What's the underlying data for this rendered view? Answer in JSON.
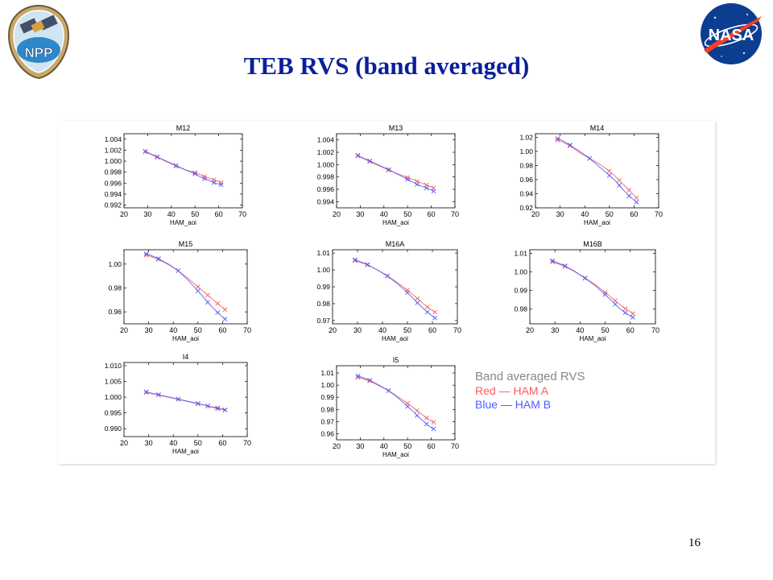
{
  "slide": {
    "title": "TEB RVS (band averaged)",
    "page_number": "16"
  },
  "logos": {
    "npp_text": "NPP",
    "nasa_text": "NASA"
  },
  "legend": {
    "title": "Band averaged RVS",
    "entries": [
      {
        "label": "Red  —  HAM A",
        "color": "#ff5a5a"
      },
      {
        "label": "Blue  —  HAM B",
        "color": "#4a5cff"
      }
    ]
  },
  "colors": {
    "ham_a": "#ff5a5a",
    "ham_b": "#4a5cff",
    "title": "#0b1f9a"
  },
  "chart_data": [
    {
      "type": "line",
      "title": "M12",
      "xlabel": "HAM_aoi",
      "ylabel": "",
      "xlim": [
        20,
        70
      ],
      "xticks": [
        20,
        30,
        40,
        50,
        60,
        70
      ],
      "ylim": [
        0.9915,
        1.005
      ],
      "yticks": [
        0.992,
        0.994,
        0.996,
        0.998,
        1.0,
        1.002,
        1.004
      ],
      "ytick_labels": [
        "0.992",
        "0.994",
        "0.996",
        "0.998",
        "1.000",
        "1.002",
        "1.004"
      ],
      "x": [
        29,
        30,
        34,
        38,
        42,
        46,
        50,
        52,
        54,
        56,
        58,
        60,
        61
      ],
      "series": [
        {
          "values": [
            1.0017,
            1.0015,
            1.0007,
            0.9999,
            0.9991,
            0.9984,
            0.9979,
            0.9976,
            0.9972,
            0.9969,
            0.9966,
            0.9963,
            0.9961
          ]
        },
        {
          "values": [
            1.0018,
            1.0016,
            1.0008,
            1.0,
            0.9992,
            0.9984,
            0.9977,
            0.9972,
            0.9968,
            0.9965,
            0.9961,
            0.9958,
            0.9957
          ]
        }
      ]
    },
    {
      "type": "line",
      "title": "M13",
      "xlabel": "HAM_aoi",
      "ylabel": "",
      "xlim": [
        20,
        70
      ],
      "xticks": [
        20,
        30,
        40,
        50,
        60,
        70
      ],
      "ylim": [
        0.993,
        1.005
      ],
      "yticks": [
        0.994,
        0.996,
        0.998,
        1.0,
        1.002,
        1.004
      ],
      "ytick_labels": [
        "0.994",
        "0.996",
        "0.998",
        "1.000",
        "1.002",
        "1.004"
      ],
      "x": [
        29,
        30,
        34,
        38,
        42,
        46,
        50,
        52,
        54,
        56,
        58,
        60,
        61
      ],
      "series": [
        {
          "values": [
            1.0014,
            1.0012,
            1.0005,
            0.9998,
            0.9991,
            0.9985,
            0.9979,
            0.9976,
            0.9973,
            0.997,
            0.9967,
            0.9964,
            0.9962
          ]
        },
        {
          "values": [
            1.0015,
            1.0013,
            1.0006,
            0.9999,
            0.9992,
            0.9984,
            0.9976,
            0.9972,
            0.9968,
            0.9965,
            0.9962,
            0.9959,
            0.9957
          ]
        }
      ]
    },
    {
      "type": "line",
      "title": "M14",
      "xlabel": "HAM_aoi",
      "ylabel": "",
      "xlim": [
        20,
        70
      ],
      "xticks": [
        20,
        30,
        40,
        50,
        60,
        70
      ],
      "ylim": [
        0.92,
        1.025
      ],
      "yticks": [
        0.92,
        0.94,
        0.96,
        0.98,
        1.0,
        1.02
      ],
      "ytick_labels": [
        "0.92",
        "0.94",
        "0.96",
        "0.98",
        "1.00",
        "1.02"
      ],
      "x": [
        29,
        30,
        34,
        38,
        42,
        46,
        50,
        52,
        54,
        56,
        58,
        60,
        61
      ],
      "series": [
        {
          "values": [
            1.016,
            1.015,
            1.008,
            0.998,
            0.99,
            0.982,
            0.972,
            0.966,
            0.959,
            0.952,
            0.945,
            0.938,
            0.934
          ]
        },
        {
          "values": [
            1.018,
            1.017,
            1.009,
            1.0,
            0.99,
            0.978,
            0.966,
            0.96,
            0.952,
            0.944,
            0.937,
            0.931,
            0.928
          ]
        }
      ]
    },
    {
      "type": "line",
      "title": "M15",
      "xlabel": "HAM_aoi",
      "ylabel": "",
      "xlim": [
        20,
        70
      ],
      "xticks": [
        20,
        30,
        40,
        50,
        60,
        70
      ],
      "ylim": [
        0.95,
        1.012
      ],
      "yticks": [
        0.96,
        0.98,
        1.0
      ],
      "ytick_labels": [
        "0.96",
        "0.98",
        "1.00"
      ],
      "x": [
        29,
        30,
        34,
        38,
        42,
        46,
        50,
        52,
        54,
        56,
        58,
        60,
        61
      ],
      "series": [
        {
          "values": [
            1.0075,
            1.007,
            1.004,
            0.9995,
            0.9945,
            0.988,
            0.981,
            0.9775,
            0.974,
            0.9705,
            0.967,
            0.9635,
            0.962
          ]
        },
        {
          "values": [
            1.0085,
            1.008,
            1.0045,
            1.0,
            0.9945,
            0.9865,
            0.9775,
            0.973,
            0.968,
            0.9635,
            0.9595,
            0.9555,
            0.954
          ]
        }
      ]
    },
    {
      "type": "line",
      "title": "M16A",
      "xlabel": "HAM_aoi",
      "ylabel": "",
      "xlim": [
        20,
        70
      ],
      "xticks": [
        20,
        30,
        40,
        50,
        60,
        70
      ],
      "ylim": [
        0.968,
        1.012
      ],
      "yticks": [
        0.97,
        0.98,
        0.99,
        1.0,
        1.01
      ],
      "ytick_labels": [
        "0.97",
        "0.98",
        "0.99",
        "1.00",
        "1.01"
      ],
      "x": [
        29,
        30,
        34,
        38,
        42,
        46,
        50,
        52,
        54,
        56,
        58,
        60,
        61
      ],
      "series": [
        {
          "values": [
            1.0055,
            1.005,
            1.003,
            1.0,
            0.9965,
            0.9925,
            0.988,
            0.9855,
            0.983,
            0.9805,
            0.978,
            0.976,
            0.975
          ]
        },
        {
          "values": [
            1.006,
            1.0055,
            1.0032,
            1.0,
            0.9963,
            0.9918,
            0.9865,
            0.9835,
            0.9805,
            0.9775,
            0.975,
            0.9725,
            0.9715
          ]
        }
      ]
    },
    {
      "type": "line",
      "title": "M16B",
      "xlabel": "HAM_aoi",
      "ylabel": "",
      "xlim": [
        20,
        70
      ],
      "xticks": [
        20,
        30,
        40,
        50,
        60,
        70
      ],
      "ylim": [
        0.972,
        1.012
      ],
      "yticks": [
        0.98,
        0.99,
        1.0,
        1.01
      ],
      "ytick_labels": [
        "0.98",
        "0.99",
        "1.00",
        "1.01"
      ],
      "x": [
        29,
        30,
        34,
        38,
        42,
        46,
        50,
        52,
        54,
        56,
        58,
        60,
        61
      ],
      "series": [
        {
          "values": [
            1.0055,
            1.005,
            1.003,
            1.0,
            0.9968,
            0.9932,
            0.989,
            0.9868,
            0.9845,
            0.9822,
            0.9802,
            0.9785,
            0.9775
          ]
        },
        {
          "values": [
            1.006,
            1.0055,
            1.0033,
            1.0002,
            0.9966,
            0.9926,
            0.9878,
            0.9852,
            0.9826,
            0.98,
            0.978,
            0.9762,
            0.9755
          ]
        }
      ]
    },
    {
      "type": "line",
      "title": "I4",
      "xlabel": "HAM_aoi",
      "ylabel": "",
      "xlim": [
        20,
        70
      ],
      "xticks": [
        20,
        30,
        40,
        50,
        60,
        70
      ],
      "ylim": [
        0.9875,
        1.011
      ],
      "yticks": [
        0.99,
        0.995,
        1.0,
        1.005,
        1.01
      ],
      "ytick_labels": [
        "0.990",
        "0.995",
        "1.000",
        "1.005",
        "1.010"
      ],
      "x": [
        29,
        30,
        34,
        38,
        42,
        46,
        50,
        52,
        54,
        56,
        58,
        60,
        61
      ],
      "series": [
        {
          "values": [
            1.0015,
            1.0013,
            1.0007,
            1.0,
            0.9993,
            0.9986,
            0.9979,
            0.9976,
            0.9972,
            0.9969,
            0.9966,
            0.9962,
            0.996
          ]
        },
        {
          "values": [
            1.0017,
            1.0015,
            1.0008,
            1.0001,
            0.9994,
            0.9987,
            0.998,
            0.9976,
            0.9972,
            0.9968,
            0.9964,
            0.9961,
            0.9959
          ]
        }
      ]
    },
    {
      "type": "line",
      "title": "I5",
      "xlabel": "HAM_aoi",
      "ylabel": "",
      "xlim": [
        20,
        70
      ],
      "xticks": [
        20,
        30,
        40,
        50,
        60,
        70
      ],
      "ylim": [
        0.955,
        1.016
      ],
      "yticks": [
        0.96,
        0.97,
        0.98,
        0.99,
        1.0,
        1.01
      ],
      "ytick_labels": [
        "0.96",
        "0.97",
        "0.98",
        "0.99",
        "1.00",
        "1.01"
      ],
      "x": [
        29,
        30,
        34,
        38,
        42,
        46,
        50,
        52,
        54,
        56,
        58,
        60,
        61
      ],
      "series": [
        {
          "values": [
            1.0065,
            1.006,
            1.0035,
            0.9995,
            0.9955,
            0.9905,
            0.985,
            0.982,
            0.979,
            0.976,
            0.973,
            0.9705,
            0.9695
          ]
        },
        {
          "values": [
            1.0075,
            1.007,
            1.004,
            1.0,
            0.9955,
            0.9895,
            0.9825,
            0.979,
            0.975,
            0.9715,
            0.968,
            0.965,
            0.964
          ]
        }
      ]
    }
  ]
}
